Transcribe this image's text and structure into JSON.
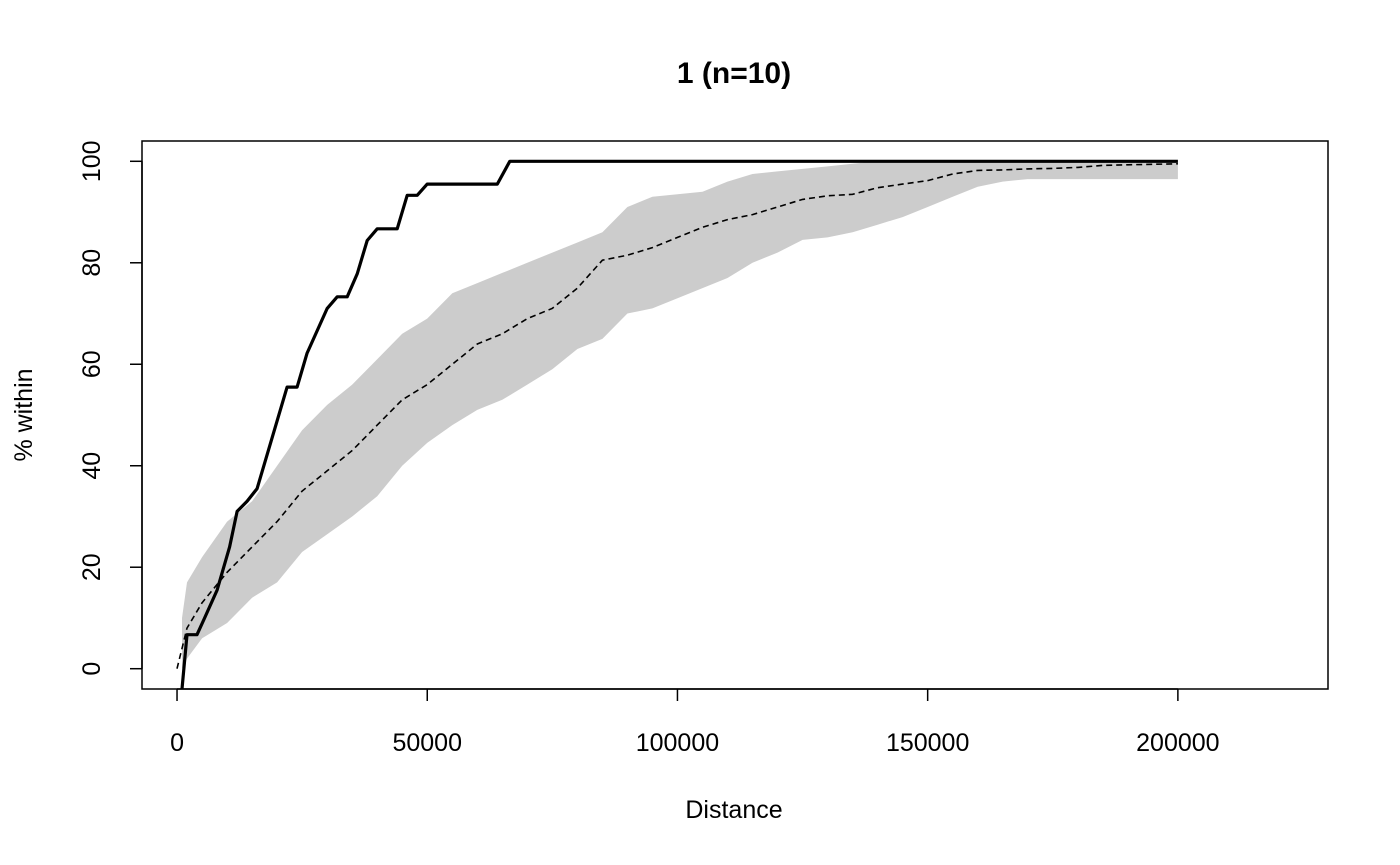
{
  "chart_data": {
    "type": "line",
    "title": "1 (n=10)",
    "xlabel": "Distance",
    "ylabel": "% within",
    "xlim": [
      -7000,
      230000
    ],
    "ylim": [
      -4,
      104
    ],
    "x_ticks": [
      0,
      50000,
      100000,
      150000,
      200000
    ],
    "y_ticks": [
      0,
      20,
      40,
      60,
      80,
      100
    ],
    "grid": false,
    "legend": "none",
    "colors": {
      "observed": "#000000",
      "expected": "#000000",
      "envelope": "#cccccc"
    },
    "series": [
      {
        "style": "solid",
        "x": [
          1000,
          2000,
          4000,
          5500,
          8000,
          10500,
          12000,
          14000,
          16000,
          22000,
          24000,
          26000,
          30000,
          32000,
          34000,
          36000,
          38000,
          40000,
          44000,
          46000,
          48000,
          50000,
          52000,
          58000,
          64000,
          66500,
          70000,
          100000,
          150000,
          200000
        ],
        "y": [
          -4,
          6.7,
          6.7,
          10,
          15.5,
          24,
          31,
          33,
          35.5,
          55.5,
          55.5,
          62.2,
          71,
          73.3,
          73.3,
          77.8,
          84.4,
          86.7,
          86.7,
          93.3,
          93.3,
          95.5,
          95.5,
          95.5,
          95.5,
          100,
          100,
          100,
          100,
          100
        ]
      },
      {
        "style": "dashed",
        "x": [
          0,
          1000,
          2000,
          5000,
          10000,
          15000,
          20000,
          25000,
          30000,
          35000,
          40000,
          45000,
          50000,
          55000,
          60000,
          65000,
          70000,
          75000,
          80000,
          85000,
          90000,
          95000,
          100000,
          105000,
          110000,
          115000,
          120000,
          125000,
          130000,
          135000,
          140000,
          145000,
          150000,
          155000,
          160000,
          165000,
          170000,
          175000,
          180000,
          185000,
          190000,
          195000,
          200000
        ],
        "y": [
          0,
          4,
          8,
          13,
          19,
          24,
          29,
          35,
          39,
          43,
          48,
          53,
          56,
          60,
          64,
          66,
          69,
          71,
          75,
          80.5,
          81.5,
          83,
          85,
          87,
          88.5,
          89.5,
          91,
          92.5,
          93.2,
          93.5,
          94.8,
          95.5,
          96.2,
          97.5,
          98.2,
          98.3,
          98.5,
          98.6,
          98.8,
          99.2,
          99.3,
          99.4,
          99.5
        ]
      }
    ],
    "envelope": {
      "x": [
        1000,
        2000,
        5000,
        10000,
        15000,
        20000,
        25000,
        30000,
        35000,
        40000,
        45000,
        50000,
        55000,
        60000,
        65000,
        70000,
        75000,
        80000,
        85000,
        90000,
        95000,
        100000,
        105000,
        110000,
        115000,
        120000,
        125000,
        130000,
        135000,
        140000,
        145000,
        150000,
        155000,
        160000,
        165000,
        170000,
        175000,
        180000,
        185000,
        190000,
        195000,
        200000
      ],
      "lower": [
        0,
        2,
        6,
        9,
        14,
        17,
        23,
        26.5,
        30,
        34,
        40,
        44.5,
        48,
        51,
        53,
        56,
        59,
        63,
        65,
        70,
        71,
        73,
        75,
        77,
        80,
        82,
        84.5,
        85,
        86,
        87.5,
        89,
        91,
        93,
        95,
        96,
        96.5,
        96.5,
        96.5,
        96.5,
        96.5,
        96.5,
        96.5
      ],
      "upper": [
        10,
        17,
        22,
        29,
        33,
        40,
        47,
        52,
        56,
        61,
        66,
        69,
        74,
        76,
        78,
        80,
        82,
        84,
        86,
        91,
        93,
        93.5,
        94,
        96,
        97.5,
        98,
        98.5,
        99,
        99.5,
        100,
        100,
        100,
        100,
        100,
        100,
        100,
        100,
        100,
        100,
        100,
        100,
        100
      ]
    }
  }
}
